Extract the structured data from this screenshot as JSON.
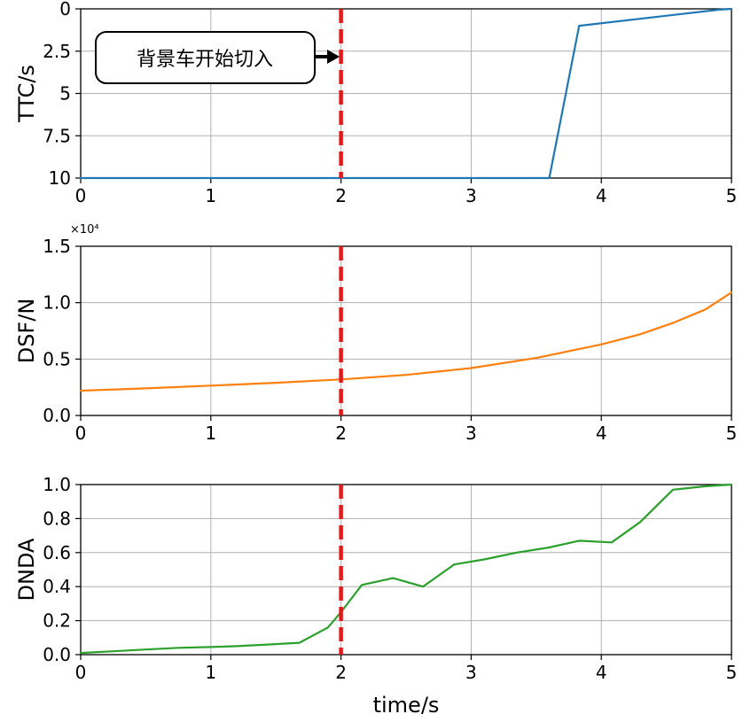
{
  "annotation": {
    "text": "背景车开始切入"
  },
  "chart_data": [
    {
      "type": "line",
      "ylabel": "TTC/s",
      "xlabel": "",
      "xlim": [
        0,
        5
      ],
      "ylim": [
        10,
        0
      ],
      "y_inverted": true,
      "grid": true,
      "xticks": [
        "0",
        "1",
        "2",
        "3",
        "4",
        "5"
      ],
      "yticks": [
        {
          "value": 0,
          "label": "0"
        },
        {
          "value": 2.5,
          "label": "2.5"
        },
        {
          "value": 5,
          "label": "5"
        },
        {
          "value": 7.5,
          "label": "7.5"
        },
        {
          "value": 10,
          "label": "10"
        }
      ],
      "vline_x": 2,
      "series": [
        {
          "color": "#1f77b4",
          "x": [
            0,
            3.6,
            3.83,
            4.9,
            5
          ],
          "y": [
            10,
            10,
            1.0,
            0.05,
            0
          ]
        }
      ]
    },
    {
      "type": "line",
      "ylabel": "DSF/N",
      "xlabel": "",
      "xlim": [
        0,
        5
      ],
      "ylim": [
        0,
        1.5
      ],
      "y_multiplier": "×10⁴",
      "grid": true,
      "xticks": [
        "0",
        "1",
        "2",
        "3",
        "4",
        "5"
      ],
      "yticks": [
        {
          "value": 0,
          "label": "0.0"
        },
        {
          "value": 0.5,
          "label": "0.5"
        },
        {
          "value": 1.0,
          "label": "1.0"
        },
        {
          "value": 1.5,
          "label": "1.5"
        }
      ],
      "vline_x": 2,
      "series": [
        {
          "color": "#ff7f0e",
          "x": [
            0,
            0.5,
            1,
            1.5,
            2,
            2.5,
            3,
            3.5,
            4,
            4.3,
            4.55,
            4.8,
            5
          ],
          "y": [
            0.22,
            0.24,
            0.265,
            0.29,
            0.32,
            0.36,
            0.42,
            0.51,
            0.63,
            0.72,
            0.82,
            0.94,
            1.09
          ]
        }
      ]
    },
    {
      "type": "line",
      "ylabel": "DNDA",
      "xlabel": "time/s",
      "xlim": [
        0,
        5
      ],
      "ylim": [
        0,
        1.0
      ],
      "grid": true,
      "xticks": [
        "0",
        "1",
        "2",
        "3",
        "4",
        "5"
      ],
      "yticks": [
        {
          "value": 0,
          "label": "0.0"
        },
        {
          "value": 0.2,
          "label": "0.2"
        },
        {
          "value": 0.4,
          "label": "0.4"
        },
        {
          "value": 0.6,
          "label": "0.6"
        },
        {
          "value": 0.8,
          "label": "0.8"
        },
        {
          "value": 1.0,
          "label": "1.0"
        }
      ],
      "vline_x": 2,
      "series": [
        {
          "color": "#2ca02c",
          "x": [
            0,
            0.25,
            0.5,
            0.75,
            1.0,
            1.2,
            1.45,
            1.68,
            1.9,
            2.0,
            2.16,
            2.4,
            2.63,
            2.87,
            3.1,
            3.35,
            3.6,
            3.83,
            4.08,
            4.3,
            4.55,
            4.8,
            5.0
          ],
          "y": [
            0.01,
            0.02,
            0.03,
            0.04,
            0.045,
            0.05,
            0.06,
            0.07,
            0.16,
            0.25,
            0.41,
            0.45,
            0.4,
            0.53,
            0.56,
            0.6,
            0.63,
            0.67,
            0.66,
            0.78,
            0.97,
            0.99,
            1.0
          ]
        }
      ]
    }
  ]
}
